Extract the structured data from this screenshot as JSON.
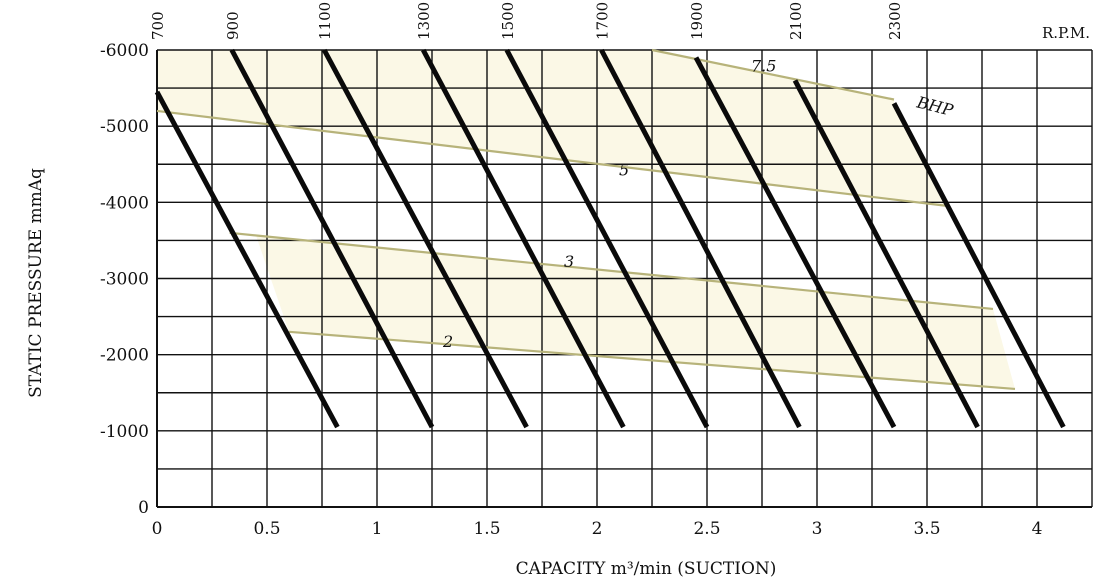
{
  "chart_data": {
    "type": "line",
    "title": "",
    "xlabel": "CAPACITY m³/min (SUCTION)",
    "ylabel": "STATIC PRESSURE mmAq",
    "xlim": [
      0,
      4.25
    ],
    "ylim": [
      0,
      -6000
    ],
    "x_ticks": [
      0,
      0.5,
      1,
      1.5,
      2,
      2.5,
      3,
      3.5,
      4
    ],
    "x_tick_labels": [
      "0",
      "0.5",
      "1",
      "1.5",
      "2",
      "2.5",
      "3",
      "3.5",
      "4"
    ],
    "y_ticks": [
      0,
      -1000,
      -2000,
      -3000,
      -4000,
      -5000,
      -6000
    ],
    "y_tick_labels": [
      "0",
      "-1000",
      "-2000",
      "-3000",
      "-4000",
      "-5000",
      "-6000"
    ],
    "grid": true,
    "top_axis_label": "R.P.M.",
    "rpm_series": [
      {
        "name": "700",
        "points": [
          [
            0.0,
            -5450
          ],
          [
            0.82,
            -1050
          ]
        ]
      },
      {
        "name": "900",
        "points": [
          [
            0.34,
            -6000
          ],
          [
            1.25,
            -1050
          ]
        ]
      },
      {
        "name": "1100",
        "points": [
          [
            0.76,
            -6000
          ],
          [
            1.68,
            -1050
          ]
        ]
      },
      {
        "name": "1300",
        "points": [
          [
            1.21,
            -6000
          ],
          [
            2.12,
            -1050
          ]
        ]
      },
      {
        "name": "1500",
        "points": [
          [
            1.59,
            -6000
          ],
          [
            2.5,
            -1050
          ]
        ]
      },
      {
        "name": "1700",
        "points": [
          [
            2.02,
            -6000
          ],
          [
            2.92,
            -1050
          ]
        ]
      },
      {
        "name": "1900",
        "points": [
          [
            2.45,
            -5900
          ],
          [
            3.35,
            -1050
          ]
        ]
      },
      {
        "name": "2100",
        "points": [
          [
            2.9,
            -5600
          ],
          [
            3.73,
            -1050
          ]
        ]
      },
      {
        "name": "2300",
        "points": [
          [
            3.35,
            -5300
          ],
          [
            4.12,
            -1050
          ]
        ]
      }
    ],
    "bhp_series": [
      {
        "name": "7.5",
        "points": [
          [
            2.25,
            -6000
          ],
          [
            3.35,
            -5350
          ]
        ]
      },
      {
        "name": "5",
        "points": [
          [
            0.0,
            -5200
          ],
          [
            3.6,
            -3950
          ]
        ]
      },
      {
        "name": "3",
        "points": [
          [
            0.33,
            -3600
          ],
          [
            3.8,
            -2600
          ]
        ]
      },
      {
        "name": "2",
        "points": [
          [
            0.6,
            -2300
          ],
          [
            3.9,
            -1550
          ]
        ]
      }
    ],
    "bhp_unit": "BHP"
  }
}
